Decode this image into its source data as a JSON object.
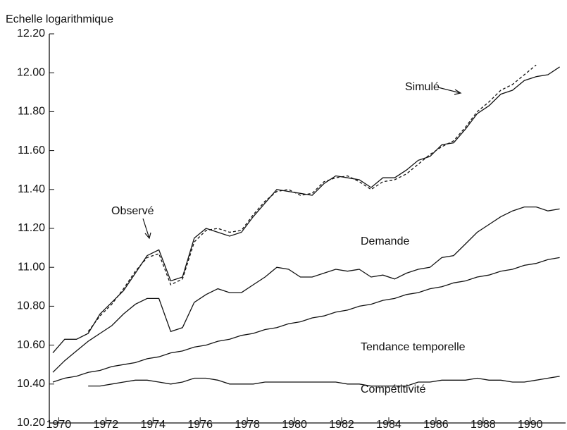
{
  "chart_data": {
    "type": "line",
    "ylabel": "Echelle logarithmique",
    "x": [
      1969.75,
      1970.25,
      1970.75,
      1971.25,
      1971.75,
      1972.25,
      1972.75,
      1973.25,
      1973.75,
      1974.25,
      1974.75,
      1975.25,
      1975.75,
      1976.25,
      1976.75,
      1977.25,
      1977.75,
      1978.25,
      1978.75,
      1979.25,
      1979.75,
      1980.25,
      1980.75,
      1981.25,
      1981.75,
      1982.25,
      1982.75,
      1983.25,
      1983.75,
      1984.25,
      1984.75,
      1985.25,
      1985.75,
      1986.25,
      1986.75,
      1987.25,
      1987.75,
      1988.25,
      1988.75,
      1989.25,
      1989.75,
      1990.25,
      1990.75,
      1991.25
    ],
    "series": [
      {
        "name": "Observé",
        "color": "#111111",
        "style": "solid",
        "values": [
          10.56,
          10.63,
          10.63,
          10.66,
          10.76,
          10.82,
          10.88,
          10.97,
          11.06,
          11.09,
          10.93,
          10.95,
          11.15,
          11.2,
          11.18,
          11.16,
          11.18,
          11.26,
          11.33,
          11.4,
          11.39,
          11.38,
          11.37,
          11.43,
          11.47,
          11.46,
          11.45,
          11.41,
          11.46,
          11.46,
          11.5,
          11.55,
          11.57,
          11.63,
          11.64,
          11.71,
          11.79,
          11.83,
          11.89,
          11.91,
          11.96,
          11.98,
          11.99,
          12.03
        ]
      },
      {
        "name": "Simulé",
        "color": "#111111",
        "style": "dashed",
        "values": [
          null,
          null,
          null,
          10.67,
          10.75,
          10.81,
          10.89,
          10.98,
          11.05,
          11.07,
          10.91,
          10.94,
          11.13,
          11.19,
          11.2,
          11.18,
          11.19,
          11.27,
          11.34,
          11.39,
          11.4,
          11.37,
          11.38,
          11.44,
          11.46,
          11.47,
          11.44,
          11.4,
          11.44,
          11.45,
          11.48,
          11.53,
          11.58,
          11.62,
          11.65,
          11.72,
          11.8,
          11.85,
          11.91,
          11.94,
          11.99,
          12.04,
          null,
          null
        ]
      },
      {
        "name": "Demande",
        "color": "#111111",
        "style": "solid",
        "values": [
          10.46,
          10.52,
          10.57,
          10.62,
          10.66,
          10.7,
          10.76,
          10.81,
          10.84,
          10.84,
          10.67,
          10.69,
          10.82,
          10.86,
          10.89,
          10.87,
          10.87,
          10.91,
          10.95,
          11.0,
          10.99,
          10.95,
          10.95,
          10.97,
          10.99,
          10.98,
          10.99,
          10.95,
          10.96,
          10.94,
          10.97,
          10.99,
          11.0,
          11.05,
          11.06,
          11.12,
          11.18,
          11.22,
          11.26,
          11.29,
          11.31,
          11.31,
          11.29,
          11.3
        ]
      },
      {
        "name": "Tendance temporelle",
        "color": "#111111",
        "style": "solid",
        "values": [
          10.41,
          10.43,
          10.44,
          10.46,
          10.47,
          10.49,
          10.5,
          10.51,
          10.53,
          10.54,
          10.56,
          10.57,
          10.59,
          10.6,
          10.62,
          10.63,
          10.65,
          10.66,
          10.68,
          10.69,
          10.71,
          10.72,
          10.74,
          10.75,
          10.77,
          10.78,
          10.8,
          10.81,
          10.83,
          10.84,
          10.86,
          10.87,
          10.89,
          10.9,
          10.92,
          10.93,
          10.95,
          10.96,
          10.98,
          10.99,
          11.01,
          11.02,
          11.04,
          11.05
        ]
      },
      {
        "name": "Compétitivité",
        "color": "#111111",
        "style": "solid",
        "values": [
          null,
          null,
          null,
          10.39,
          10.39,
          10.4,
          10.41,
          10.42,
          10.42,
          10.41,
          10.4,
          10.41,
          10.43,
          10.43,
          10.42,
          10.4,
          10.4,
          10.4,
          10.41,
          10.41,
          10.41,
          10.41,
          10.41,
          10.41,
          10.41,
          10.4,
          10.4,
          10.39,
          10.39,
          10.39,
          10.39,
          10.41,
          10.41,
          10.42,
          10.42,
          10.42,
          10.43,
          10.42,
          10.42,
          10.41,
          10.41,
          10.42,
          10.43,
          10.44
        ]
      }
    ],
    "xlim": [
      1969.6,
      1991.5
    ],
    "xticks": [
      1970,
      1972,
      1974,
      1976,
      1978,
      1980,
      1982,
      1984,
      1986,
      1988,
      1990
    ],
    "ylim": [
      10.2,
      12.2
    ],
    "yticks": [
      {
        "value": 10.2,
        "label": "10.20"
      },
      {
        "value": 10.4,
        "label": "10.40"
      },
      {
        "value": 10.6,
        "label": "10.60"
      },
      {
        "value": 10.8,
        "label": "10.80"
      },
      {
        "value": 11,
        "label": "11.00"
      },
      {
        "value": 11.2,
        "label": "11.20"
      },
      {
        "value": 11.4,
        "label": "11.40"
      },
      {
        "value": 11.6,
        "label": "11.60"
      },
      {
        "value": 11.8,
        "label": "11.80"
      },
      {
        "value": 12,
        "label": "12.00"
      },
      {
        "value": 12.2,
        "label": "12.20"
      }
    ],
    "grid": false
  }
}
